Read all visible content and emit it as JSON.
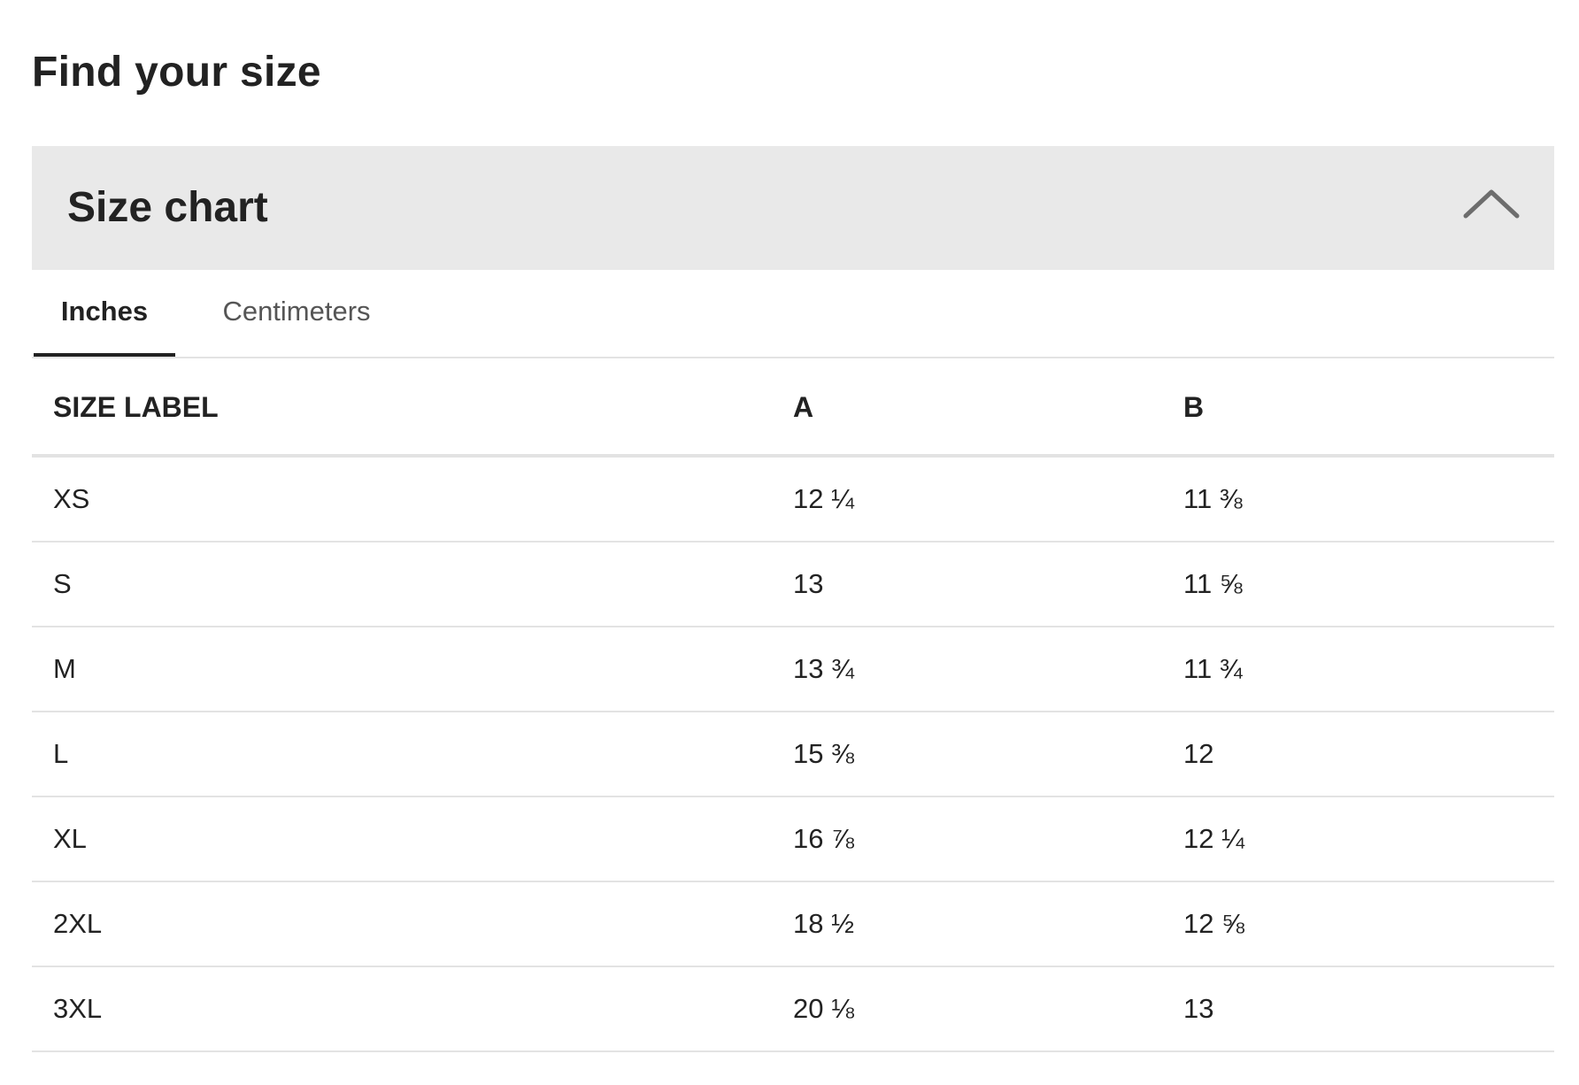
{
  "page": {
    "title": "Find your size"
  },
  "accordion": {
    "title": "Size chart",
    "icon": "chevron-up-icon",
    "expanded": true
  },
  "tabs": [
    {
      "label": "Inches",
      "active": true
    },
    {
      "label": "Centimeters",
      "active": false
    }
  ],
  "table": {
    "headers": [
      "SIZE LABEL",
      "A",
      "B"
    ],
    "rows": [
      [
        "XS",
        "12 ¼",
        "11 ⅜"
      ],
      [
        "S",
        "13",
        "11 ⅝"
      ],
      [
        "M",
        "13 ¾",
        "11 ¾"
      ],
      [
        "L",
        "15 ⅜",
        "12"
      ],
      [
        "XL",
        "16 ⅞",
        "12 ¼"
      ],
      [
        "2XL",
        "18 ½",
        "12 ⅝"
      ],
      [
        "3XL",
        "20 ⅛",
        "13"
      ]
    ]
  },
  "colors": {
    "text": "#222222",
    "header_bg": "#e9e9e9",
    "divider": "#e3e3e3",
    "chevron": "#6d6d6d",
    "inactive_tab": "#555555"
  }
}
